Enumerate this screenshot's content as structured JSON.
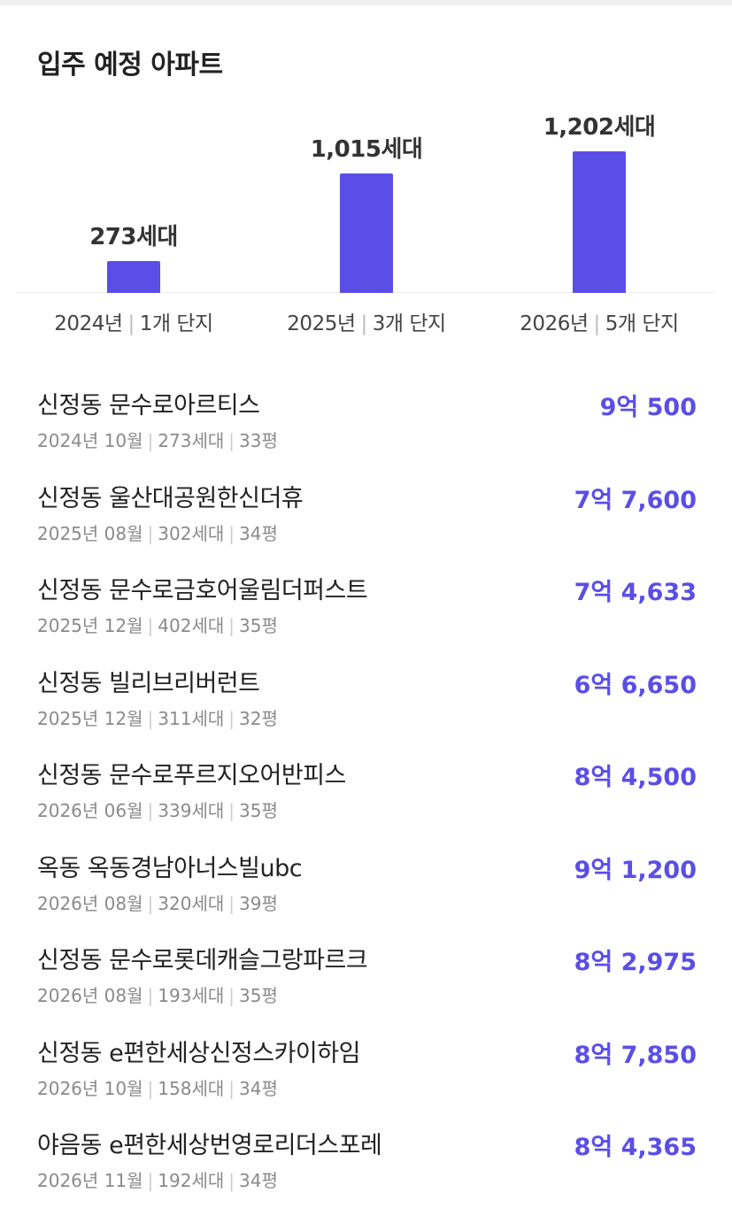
{
  "header": {
    "title": "입주 예정 아파트"
  },
  "chart_data": {
    "type": "bar",
    "categories": [
      "2024년",
      "2025년",
      "2026년"
    ],
    "complex_counts": [
      "1개 단지",
      "3개 단지",
      "5개 단지"
    ],
    "values": [
      273,
      1015,
      1202
    ],
    "value_labels": [
      "273세대",
      "1,015세대",
      "1,202세대"
    ],
    "bar_color": "#5b4ee6"
  },
  "list": {
    "items": [
      {
        "name": "신정동 문수로아르티스",
        "date": "2024년 10월",
        "households": "273세대",
        "size": "33평",
        "price": "9억 500"
      },
      {
        "name": "신정동 울산대공원한신더휴",
        "date": "2025년 08월",
        "households": "302세대",
        "size": "34평",
        "price": "7억 7,600"
      },
      {
        "name": "신정동 문수로금호어울림더퍼스트",
        "date": "2025년 12월",
        "households": "402세대",
        "size": "35평",
        "price": "7억 4,633"
      },
      {
        "name": "신정동 빌리브리버런트",
        "date": "2025년 12월",
        "households": "311세대",
        "size": "32평",
        "price": "6억 6,650"
      },
      {
        "name": "신정동 문수로푸르지오어반피스",
        "date": "2026년 06월",
        "households": "339세대",
        "size": "35평",
        "price": "8억 4,500"
      },
      {
        "name": "옥동 옥동경남아너스빌ubc",
        "date": "2026년 08월",
        "households": "320세대",
        "size": "39평",
        "price": "9억 1,200"
      },
      {
        "name": "신정동 문수로롯데캐슬그랑파르크",
        "date": "2026년 08월",
        "households": "193세대",
        "size": "35평",
        "price": "8억 2,975"
      },
      {
        "name": "신정동 e편한세상신정스카이하임",
        "date": "2026년 10월",
        "households": "158세대",
        "size": "34평",
        "price": "8억 7,850"
      },
      {
        "name": "야음동 e편한세상번영로리더스포레",
        "date": "2026년 11월",
        "households": "192세대",
        "size": "34평",
        "price": "8억 4,365"
      }
    ]
  },
  "colors": {
    "accent": "#5b4ee6",
    "meta_text": "#8a8a8a"
  }
}
